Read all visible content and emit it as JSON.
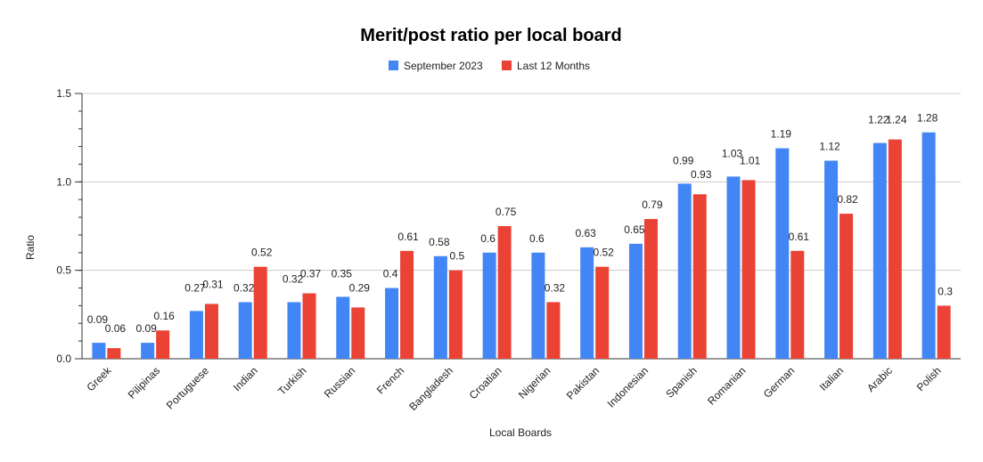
{
  "chart_data": {
    "type": "bar",
    "title": "Merit/post ratio per local board",
    "xlabel": "Local Boards",
    "ylabel": "Ratio",
    "ylim": [
      0,
      1.5
    ],
    "yticks": [
      0,
      0.5,
      1.0,
      1.5
    ],
    "ytick_labels": [
      "0.0",
      "0.5",
      "1.0",
      "1.5"
    ],
    "grid": true,
    "legend_position": "top",
    "categories": [
      "Greek",
      "Pilipinas",
      "Portuguese",
      "Indian",
      "Turkish",
      "Russian",
      "French",
      "Bangladesh",
      "Croatian",
      "Nigerian",
      "Pakistan",
      "Indonesian",
      "Spanish",
      "Romanian",
      "German",
      "Italian",
      "Arabic",
      "Polish"
    ],
    "series": [
      {
        "name": "September 2023",
        "color": "#4285f4",
        "values": [
          0.09,
          0.09,
          0.27,
          0.32,
          0.32,
          0.35,
          0.4,
          0.58,
          0.6,
          0.6,
          0.63,
          0.65,
          0.99,
          1.03,
          1.19,
          1.12,
          1.22,
          1.28
        ],
        "labels": [
          "0.09",
          "0.09",
          "0.27",
          "0.32",
          "0.32",
          "0.35",
          "0.4",
          "0.58",
          "0.6",
          "0.6",
          "0.63",
          "0.65",
          "0.99",
          "1.03",
          "1.19",
          "1.12",
          "1.22",
          "1.28"
        ]
      },
      {
        "name": "Last 12 Months",
        "color": "#ea4335",
        "values": [
          0.06,
          0.16,
          0.31,
          0.52,
          0.37,
          0.29,
          0.61,
          0.5,
          0.75,
          0.32,
          0.52,
          0.79,
          0.93,
          1.01,
          0.61,
          0.82,
          1.24,
          0.3
        ],
        "labels": [
          "0.06",
          "0.16",
          "0.31",
          "0.52",
          "0.37",
          "0.29",
          "0.61",
          "0.5",
          "0.75",
          "0.32",
          "0.52",
          "0.79",
          "0.93",
          "1.01",
          "0.61",
          "0.82",
          "1.24",
          "0.3"
        ]
      }
    ]
  }
}
